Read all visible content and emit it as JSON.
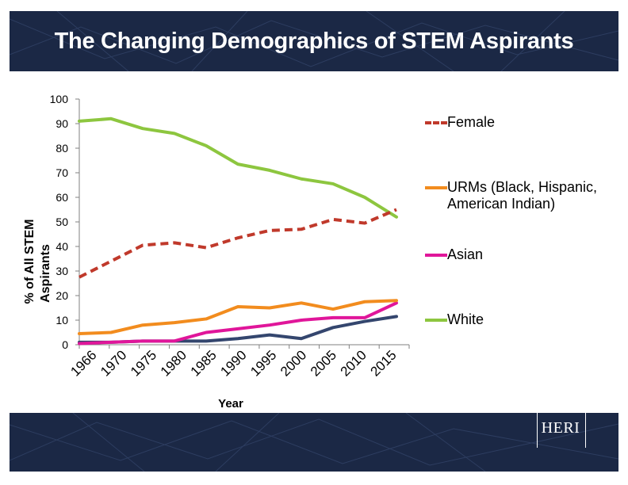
{
  "slide": {
    "title": "The Changing Demographics of STEM Aspirants",
    "logo_text": "HERI"
  },
  "chart_data": {
    "type": "line",
    "title": "",
    "xlabel": "Year",
    "ylabel": "% of All STEM Aspirants",
    "ylim": [
      0,
      100
    ],
    "yticks": [
      0,
      10,
      20,
      30,
      40,
      50,
      60,
      70,
      80,
      90,
      100
    ],
    "xtick_labels": [
      "1966",
      "1970",
      "1975",
      "1980",
      "1985",
      "1990",
      "1995",
      "2000",
      "2005",
      "2010",
      "2015"
    ],
    "grid": false,
    "legend": "right",
    "colors": {
      "female": "#c0392b",
      "urm": "#f28c1e",
      "asian": "#e0169a",
      "white": "#8dc63f",
      "unlabeled": "#34466e"
    },
    "series": [
      {
        "key": "female",
        "name": "Female",
        "style": "dashed",
        "x": [
          1966,
          1971,
          1976,
          1981,
          1986,
          1991,
          1996,
          2001,
          2006,
          2011,
          2016
        ],
        "values": [
          27.5,
          34,
          40.5,
          41.5,
          39.5,
          43.5,
          46.5,
          47,
          51,
          49.5,
          55
        ]
      },
      {
        "key": "urm",
        "name": "URMs (Black, Hispanic, American Indian)",
        "style": "solid",
        "x": [
          1966,
          1971,
          1976,
          1981,
          1986,
          1991,
          1996,
          2001,
          2006,
          2011,
          2016
        ],
        "values": [
          4.5,
          5,
          8,
          9,
          10.5,
          15.5,
          15,
          17,
          14.5,
          17.5,
          18
        ]
      },
      {
        "key": "asian",
        "name": "Asian",
        "style": "solid",
        "x": [
          1966,
          1971,
          1976,
          1981,
          1986,
          1991,
          1996,
          2001,
          2006,
          2011,
          2016
        ],
        "values": [
          0.5,
          1,
          1.5,
          1.5,
          5,
          6.5,
          8,
          10,
          11,
          11,
          17
        ]
      },
      {
        "key": "white",
        "name": "White",
        "style": "solid",
        "x": [
          1966,
          1971,
          1976,
          1981,
          1986,
          1991,
          1996,
          2001,
          2006,
          2011,
          2016
        ],
        "values": [
          91,
          92,
          88,
          86,
          81,
          73.5,
          71,
          67.5,
          65.5,
          60,
          52
        ]
      },
      {
        "key": "unlabeled",
        "style": "solid",
        "x": [
          1966,
          1971,
          1976,
          1981,
          1986,
          1991,
          1996,
          2001,
          2006,
          2011,
          2016
        ],
        "values": [
          1,
          1,
          1.5,
          1.5,
          1.5,
          2.5,
          4,
          2.5,
          7,
          9.5,
          11.5
        ]
      }
    ]
  }
}
